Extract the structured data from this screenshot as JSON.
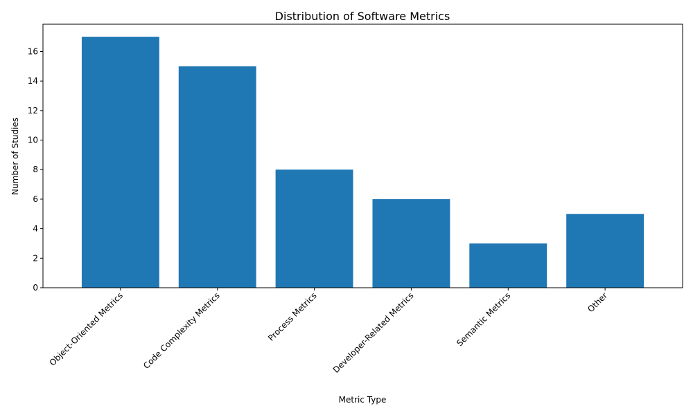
{
  "chart_data": {
    "type": "bar",
    "title": "Distribution of Software Metrics",
    "xlabel": "Metric Type",
    "ylabel": "Number of Studies",
    "categories": [
      "Object-Oriented Metrics",
      "Code Complexity Metrics",
      "Process Metrics",
      "Developer-Related Metrics",
      "Semantic Metrics",
      "Other"
    ],
    "values": [
      17,
      15,
      8,
      6,
      3,
      5
    ],
    "ylim": [
      0,
      17.85
    ],
    "yticks": [
      0,
      2,
      4,
      6,
      8,
      10,
      12,
      14,
      16
    ],
    "grid": false,
    "bar_color": "#1f77b4"
  }
}
